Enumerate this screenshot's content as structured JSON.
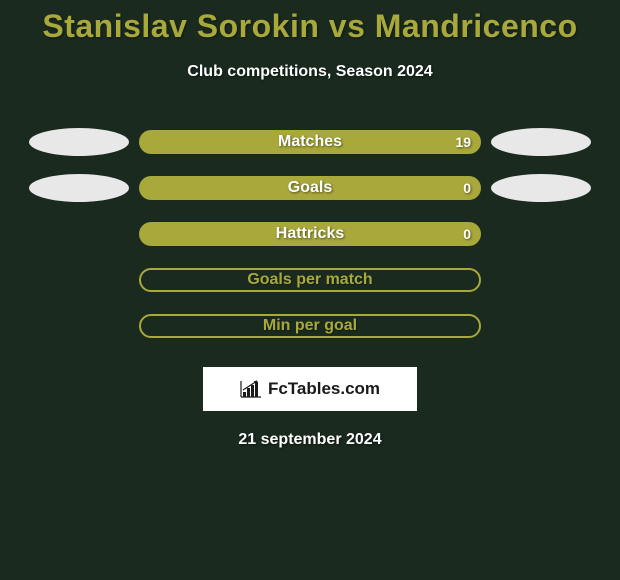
{
  "title": "Stanislav Sorokin vs Mandricenco",
  "subtitle": "Club competitions, Season 2024",
  "rows": [
    {
      "label": "Matches",
      "value": "19",
      "filled": true,
      "leftBlob": true,
      "rightBlob": true
    },
    {
      "label": "Goals",
      "value": "0",
      "filled": true,
      "leftBlob": true,
      "rightBlob": true
    },
    {
      "label": "Hattricks",
      "value": "0",
      "filled": true,
      "leftBlob": false,
      "rightBlob": false
    },
    {
      "label": "Goals per match",
      "value": "",
      "filled": false,
      "leftBlob": false,
      "rightBlob": false
    },
    {
      "label": "Min per goal",
      "value": "",
      "filled": false,
      "leftBlob": false,
      "rightBlob": false
    }
  ],
  "logo_text": "FcTables.com",
  "date": "21 september 2024",
  "colors": {
    "accent": "#a8a83b",
    "bg": "#1a2a1f",
    "blob": "#e8e8e8"
  }
}
